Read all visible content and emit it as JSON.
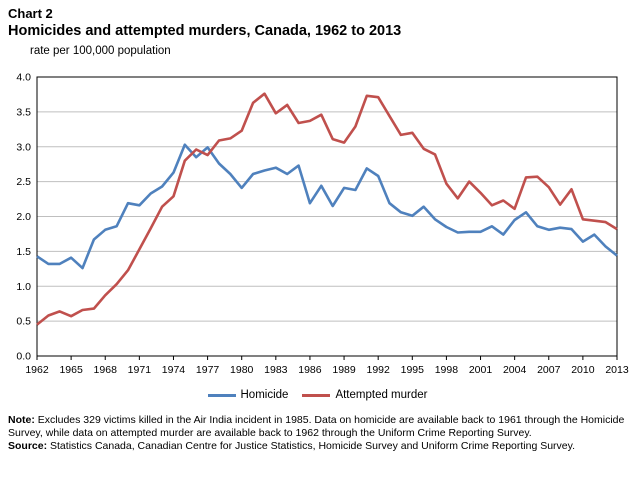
{
  "header": {
    "chart_label": "Chart 2",
    "title": "Homicides and attempted murders, Canada, 1962 to 2013"
  },
  "footnotes": {
    "note_label": "Note:",
    "note_text": "Excludes 329 victims killed in the Air India incident in 1985. Data on homicide are available back to 1961 through the Homicide Survey, while data on attempted murder are available back to 1962 through the Uniform Crime Reporting Survey.",
    "source_label": "Source:",
    "source_text": "Statistics Canada, Canadian Centre for Justice Statistics, Homicide Survey and Uniform Crime Reporting Survey."
  },
  "chart_data": {
    "type": "line",
    "title": "Homicides and attempted murders, Canada, 1962 to 2013",
    "ylabel": "rate per 100,000 population",
    "xlabel": "",
    "ylim": [
      0,
      4.0
    ],
    "xlim": [
      1962,
      2013
    ],
    "y_ticks": [
      "0.0",
      "0.5",
      "1.0",
      "1.5",
      "2.0",
      "2.5",
      "3.0",
      "3.5",
      "4.0"
    ],
    "x_ticks": [
      "1962",
      "1965",
      "1968",
      "1971",
      "1974",
      "1977",
      "1980",
      "1983",
      "1986",
      "1989",
      "1992",
      "1995",
      "1998",
      "2001",
      "2004",
      "2007",
      "2010",
      "2013"
    ],
    "grid": "horizontal",
    "legend_position": "bottom",
    "x": [
      1962,
      1963,
      1964,
      1965,
      1966,
      1967,
      1968,
      1969,
      1970,
      1971,
      1972,
      1973,
      1974,
      1975,
      1976,
      1977,
      1978,
      1979,
      1980,
      1981,
      1982,
      1983,
      1984,
      1985,
      1986,
      1987,
      1988,
      1989,
      1990,
      1991,
      1992,
      1993,
      1994,
      1995,
      1996,
      1997,
      1998,
      1999,
      2000,
      2001,
      2002,
      2003,
      2004,
      2005,
      2006,
      2007,
      2008,
      2009,
      2010,
      2011,
      2012,
      2013
    ],
    "series": [
      {
        "name": "Homicide",
        "color": "#4f81bd",
        "values": [
          1.43,
          1.32,
          1.32,
          1.41,
          1.26,
          1.67,
          1.81,
          1.86,
          2.19,
          2.16,
          2.33,
          2.43,
          2.63,
          3.03,
          2.85,
          2.99,
          2.76,
          2.61,
          2.41,
          2.61,
          2.66,
          2.7,
          2.61,
          2.73,
          2.19,
          2.44,
          2.15,
          2.41,
          2.38,
          2.69,
          2.58,
          2.19,
          2.06,
          2.01,
          2.14,
          1.96,
          1.85,
          1.77,
          1.78,
          1.78,
          1.86,
          1.74,
          1.95,
          2.06,
          1.86,
          1.81,
          1.84,
          1.82,
          1.64,
          1.74,
          1.57,
          1.44
        ]
      },
      {
        "name": "Attempted murder",
        "color": "#c0504d",
        "values": [
          0.45,
          0.58,
          0.64,
          0.57,
          0.66,
          0.68,
          0.87,
          1.03,
          1.23,
          1.53,
          1.83,
          2.14,
          2.29,
          2.8,
          2.96,
          2.88,
          3.09,
          3.12,
          3.23,
          3.63,
          3.76,
          3.48,
          3.6,
          3.34,
          3.37,
          3.46,
          3.11,
          3.06,
          3.29,
          3.73,
          3.71,
          3.44,
          3.17,
          3.2,
          2.97,
          2.89,
          2.47,
          2.26,
          2.5,
          2.34,
          2.16,
          2.23,
          2.11,
          2.56,
          2.57,
          2.42,
          2.17,
          2.39,
          1.96,
          1.94,
          1.92,
          1.82
        ]
      }
    ]
  }
}
